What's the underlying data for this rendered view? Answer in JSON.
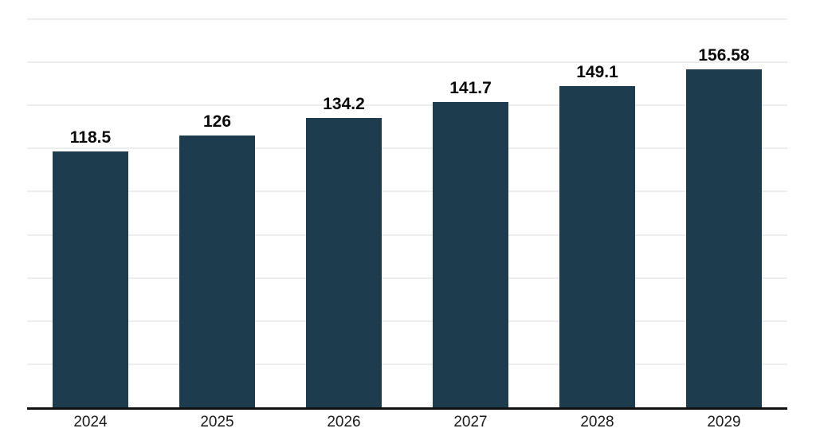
{
  "chart_data": {
    "type": "bar",
    "title": "",
    "xlabel": "",
    "ylabel": "",
    "categories": [
      "2024",
      "2025",
      "2026",
      "2027",
      "2028",
      "2029"
    ],
    "values": [
      118.5,
      126,
      134.2,
      141.7,
      149.1,
      156.58
    ],
    "value_labels": [
      "118.5",
      "126",
      "134.2",
      "141.7",
      "149.1",
      "156.58"
    ],
    "ylim": [
      0,
      180
    ],
    "gridline_step": 20,
    "grid": true,
    "legend_position": "none",
    "colors": {
      "bar": "#1d3c4d",
      "gridline": "#ededed",
      "axis_line": "#111111",
      "value_label": "#0a0a0a",
      "category_label": "#1a1a1a",
      "background": "#ffffff"
    }
  }
}
